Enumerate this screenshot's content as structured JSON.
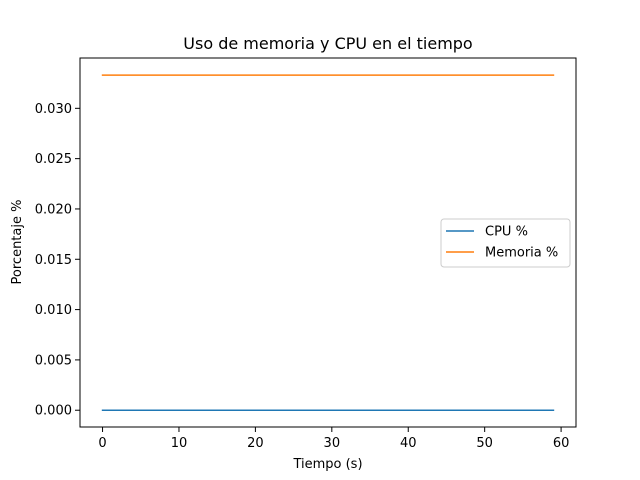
{
  "chart_data": {
    "type": "line",
    "title": "Uso de memoria y CPU en el tiempo",
    "xlabel": "Tiempo (s)",
    "ylabel": "Porcentaje %",
    "xlim": [
      -2.95,
      61.95
    ],
    "ylim": [
      -0.001667,
      0.035
    ],
    "xticks": [
      0,
      10,
      20,
      30,
      40,
      50,
      60
    ],
    "xtick_labels": [
      "0",
      "10",
      "20",
      "30",
      "40",
      "50",
      "60"
    ],
    "yticks": [
      0.0,
      0.005,
      0.01,
      0.015,
      0.02,
      0.025,
      0.03
    ],
    "ytick_labels": [
      "0.000",
      "0.005",
      "0.010",
      "0.015",
      "0.020",
      "0.025",
      "0.030"
    ],
    "grid": false,
    "legend_position": "center-right",
    "series": [
      {
        "name": "CPU %",
        "color": "#1f77b4",
        "x": [
          0,
          59
        ],
        "y": [
          0.0,
          0.0
        ]
      },
      {
        "name": "Memoria %",
        "color": "#ff7f0e",
        "x": [
          0,
          59
        ],
        "y": [
          0.0333,
          0.0333
        ]
      }
    ]
  }
}
